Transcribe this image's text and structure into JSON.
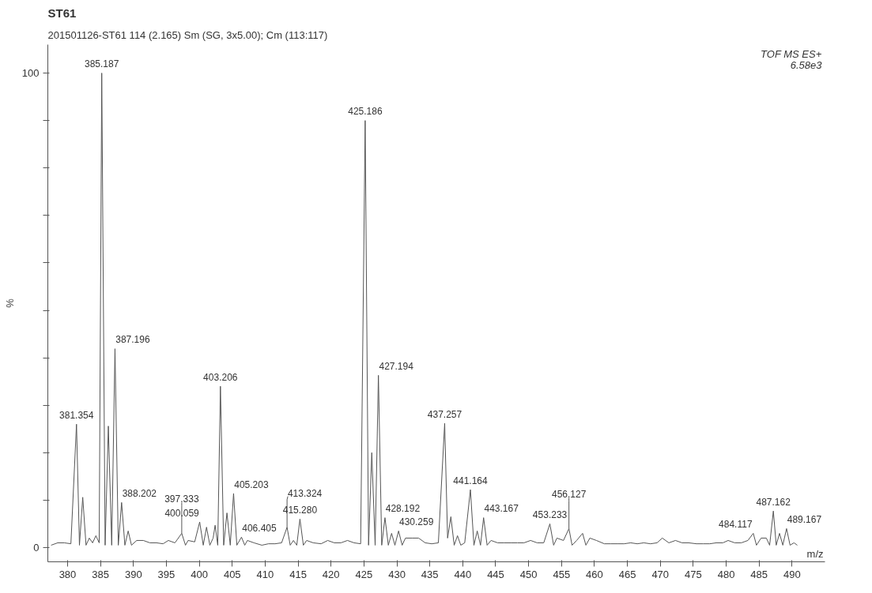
{
  "chart_data": {
    "type": "line",
    "title": "ST61",
    "subtitle": "201501126-ST61  114 (2.165) Sm (SG, 3x5.00); Cm (113:117)",
    "xlabel": "m/z",
    "ylabel": "%",
    "xlim": [
      377,
      495
    ],
    "ylim": [
      -3,
      106
    ],
    "xticks": [
      380,
      385,
      390,
      395,
      400,
      405,
      410,
      415,
      420,
      425,
      430,
      435,
      440,
      445,
      450,
      455,
      460,
      465,
      470,
      475,
      480,
      485,
      490
    ],
    "yticks": [
      0,
      {
        "value": 10,
        "label": null
      },
      {
        "value": 20,
        "label": null
      },
      {
        "value": 30,
        "label": null
      },
      {
        "value": 40,
        "label": null
      },
      {
        "value": 50,
        "label": null
      },
      {
        "value": 60,
        "label": null
      },
      {
        "value": 70,
        "label": null
      },
      {
        "value": 80,
        "label": null
      },
      {
        "value": 90,
        "label": null
      },
      100
    ],
    "grid": false,
    "marker": "none",
    "line_style": "solid",
    "series": [
      {
        "color": "#555555",
        "x": [
          377.5,
          378.5,
          379.5,
          380.5,
          381.354,
          381.8,
          382.3,
          382.8,
          383.3,
          383.8,
          384.3,
          384.8,
          385.187,
          385.7,
          386.19,
          386.7,
          387.196,
          387.7,
          388.202,
          388.7,
          389.2,
          389.7,
          390.5,
          391.5,
          392.5,
          393.5,
          394.5,
          395.3,
          396.3,
          397.333,
          397.9,
          398.3,
          399.3,
          400.059,
          400.6,
          401.1,
          401.6,
          402.1,
          402.4,
          402.8,
          403.206,
          403.7,
          404.2,
          404.7,
          405.203,
          405.7,
          406.405,
          406.9,
          407.3,
          408.3,
          409.5,
          410.5,
          411.5,
          412.5,
          413.324,
          413.8,
          414.3,
          414.8,
          415.28,
          415.8,
          416.3,
          417.3,
          418.5,
          419.5,
          420.5,
          421.5,
          422.5,
          423.5,
          424.5,
          425.186,
          425.7,
          426.19,
          426.7,
          427.194,
          427.7,
          428.192,
          428.7,
          429.2,
          429.7,
          430.259,
          430.8,
          431.3,
          432.3,
          433.3,
          434.3,
          435.3,
          436.3,
          437.257,
          437.7,
          438.2,
          438.7,
          439.2,
          439.7,
          440.3,
          441.164,
          441.7,
          442.2,
          442.7,
          443.167,
          443.7,
          444.3,
          445.3,
          446.3,
          447.3,
          448.3,
          449.3,
          450.3,
          451.3,
          452.3,
          453.233,
          453.8,
          454.3,
          455.3,
          456.127,
          456.6,
          457.3,
          458.2,
          458.7,
          459.3,
          460.3,
          461.5,
          462.5,
          463.5,
          464.5,
          465.5,
          466.5,
          467.5,
          468.5,
          469.5,
          470.3,
          471.3,
          472.3,
          473.3,
          474.3,
          475.5,
          476.5,
          477.5,
          478.5,
          479.5,
          480.3,
          481.3,
          482.3,
          483.3,
          484.117,
          484.6,
          485.3,
          486.1,
          486.6,
          487.162,
          487.6,
          488.1,
          488.6,
          489.167,
          489.7,
          490.3,
          490.8
        ],
        "values": [
          0.5,
          1,
          1,
          0.8,
          26,
          0.5,
          10.6,
          0.5,
          2,
          1,
          2.5,
          1,
          100,
          0.5,
          25.6,
          0.5,
          41.9,
          0.5,
          9.5,
          0.5,
          3.5,
          0.5,
          1.5,
          1.5,
          1,
          1,
          0.8,
          1.5,
          1,
          3,
          0.5,
          1.5,
          1.2,
          5.4,
          0.5,
          4.3,
          0.5,
          2,
          4.7,
          0.5,
          34,
          0.5,
          7.3,
          0.5,
          11.4,
          0.5,
          2.2,
          0.5,
          1.5,
          1,
          0.5,
          0.8,
          0.8,
          1,
          4.3,
          0.5,
          1.5,
          0.5,
          6,
          0.5,
          1.5,
          1,
          0.8,
          1.5,
          1,
          1,
          1.5,
          1,
          0.8,
          90,
          0.5,
          20,
          0.5,
          36.3,
          0.5,
          6.3,
          0.5,
          3,
          0.5,
          3.5,
          0.5,
          2,
          2,
          2,
          1,
          0.8,
          1,
          26.2,
          2,
          6.5,
          0.5,
          2.5,
          0.5,
          1,
          12.2,
          0.5,
          3.5,
          0.5,
          6.3,
          0.5,
          1.5,
          1,
          1,
          1,
          1,
          1,
          1.5,
          1,
          1,
          5,
          0.5,
          2,
          1.5,
          4,
          0.5,
          1.5,
          3,
          0.5,
          2,
          1.5,
          0.8,
          0.8,
          0.8,
          0.8,
          1,
          0.8,
          1,
          0.8,
          1,
          2,
          1,
          1.5,
          1,
          1,
          0.8,
          0.8,
          0.8,
          1,
          1,
          1.5,
          1,
          1,
          1.5,
          3,
          0.5,
          2,
          2,
          0.5,
          7.7,
          0.5,
          3,
          0.5,
          4,
          0.5,
          1,
          0.5
        ]
      }
    ],
    "annotations": [
      "TOF MS ES+",
      "6.58e3",
      {
        "text": "385.187",
        "x": 385.187,
        "y": 100
      },
      {
        "text": "425.186",
        "x": 425.186,
        "y": 90
      },
      {
        "text": "387.196",
        "x": 387.196,
        "y": 41.9
      },
      {
        "text": "427.194",
        "x": 427.194,
        "y": 36.3
      },
      {
        "text": "403.206",
        "x": 403.206,
        "y": 34
      },
      {
        "text": "437.257",
        "x": 437.257,
        "y": 26.2
      },
      {
        "text": "381.354",
        "x": 381.354,
        "y": 26
      },
      {
        "text": "441.164",
        "x": 441.164,
        "y": 12.2
      },
      {
        "text": "405.203",
        "x": 405.203,
        "y": 11.4
      },
      {
        "text": "388.202",
        "x": 388.202,
        "y": 9.5
      },
      {
        "text": "487.162",
        "x": 487.162,
        "y": 7.7
      },
      {
        "text": "428.192",
        "x": 428.192,
        "y": 6.3
      },
      {
        "text": "443.167",
        "x": 443.167,
        "y": 6.3
      },
      {
        "text": "415.280",
        "x": 415.28,
        "y": 6
      },
      {
        "text": "400.059",
        "x": 400.059,
        "y": 5.4
      },
      {
        "text": "453.233",
        "x": 453.233,
        "y": 5
      },
      {
        "text": "413.324",
        "x": 413.324,
        "y": 4.3
      },
      {
        "text": "456.127",
        "x": 456.127,
        "y": 4
      },
      {
        "text": "489.167",
        "x": 489.167,
        "y": 4
      },
      {
        "text": "430.259",
        "x": 430.259,
        "y": 3.5
      },
      {
        "text": "397.333",
        "x": 397.333,
        "y": 3
      },
      {
        "text": "484.117",
        "x": 484.117,
        "y": 3
      },
      {
        "text": "406.405",
        "x": 406.405,
        "y": 2.2
      }
    ]
  }
}
